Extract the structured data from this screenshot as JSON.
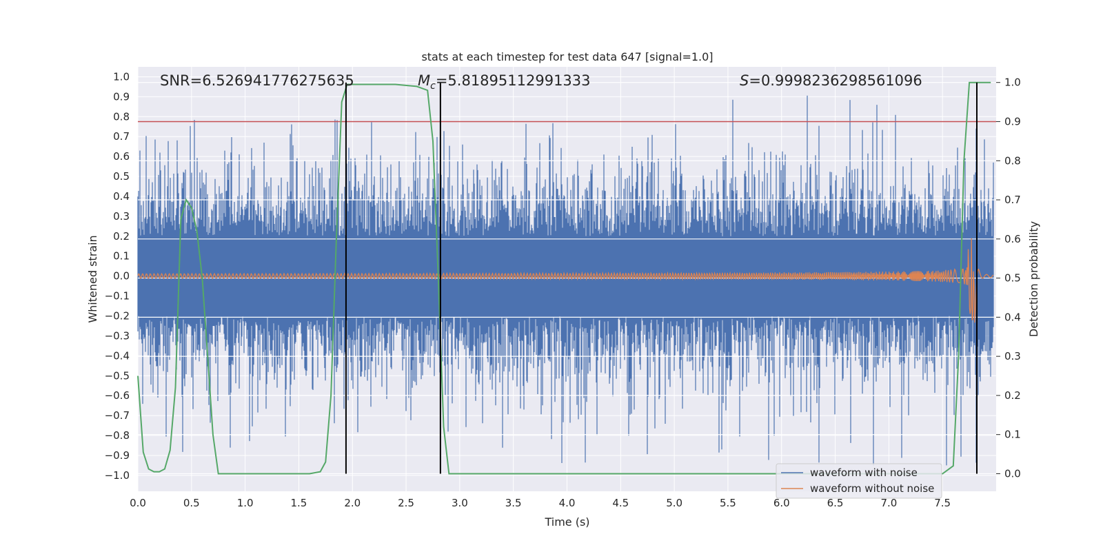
{
  "chart_data": {
    "type": "line",
    "title": "stats at each timestep for test data 647 [signal=1.0]",
    "xlabel": "Time (s)",
    "ylabel_left": "Whitened strain",
    "ylabel_right": "Detection probability",
    "xlim": [
      0.0,
      8.0
    ],
    "ylim_left": [
      -1.08,
      1.05
    ],
    "ylim_right": [
      -0.045,
      1.04
    ],
    "grid": true,
    "xticks": [
      "0.0",
      "0.5",
      "1.0",
      "1.5",
      "2.0",
      "2.5",
      "3.0",
      "3.5",
      "4.0",
      "4.5",
      "5.0",
      "5.5",
      "6.0",
      "6.5",
      "7.0",
      "7.5"
    ],
    "yticks_left": [
      "1.0",
      "0.9",
      "0.8",
      "0.7",
      "0.6",
      "0.5",
      "0.4",
      "0.3",
      "0.2",
      "0.1",
      "0.0",
      "−0.1",
      "−0.2",
      "−0.3",
      "−0.4",
      "−0.5",
      "−0.6",
      "−0.7",
      "−0.8",
      "−0.9",
      "−1.0"
    ],
    "yticks_right": [
      "1.0",
      "0.9",
      "0.8",
      "0.7",
      "0.6",
      "0.5",
      "0.4",
      "0.3",
      "0.2",
      "0.1",
      "0.0"
    ],
    "annotations": {
      "snr": "SNR=6.526941776275635",
      "mc_symbol": "M",
      "mc_sub": "c",
      "mc_value": "=5.81895112991333",
      "s_symbol": "S",
      "s_value": "=0.9998236298561096"
    },
    "threshold": {
      "axis": "right",
      "value": 0.9,
      "color": "#c44e52"
    },
    "vertical_lines": [
      1.94,
      2.82,
      7.82
    ],
    "legend": {
      "position": "lower-right",
      "entries": [
        {
          "label": "waveform with noise",
          "color": "#4c72b0"
        },
        {
          "label": "waveform without noise",
          "color": "#dd8452"
        }
      ]
    },
    "series": [
      {
        "name": "waveform with noise",
        "axis": "left",
        "color": "#4c72b0",
        "kind": "noise",
        "sample_rate_hz": 2048,
        "approx_range": [
          -0.95,
          0.98
        ]
      },
      {
        "name": "waveform without noise",
        "axis": "left",
        "color": "#dd8452",
        "kind": "chirp",
        "amplitude_start": 0.012,
        "amplitude_peak": 0.24,
        "merger_time": 7.8
      },
      {
        "name": "detection probability",
        "axis": "right",
        "color": "#55a868",
        "x": [
          0.0,
          0.05,
          0.1,
          0.15,
          0.2,
          0.25,
          0.3,
          0.35,
          0.4,
          0.45,
          0.5,
          0.55,
          0.6,
          0.65,
          0.7,
          0.75,
          0.8,
          0.85,
          0.9,
          1.0,
          1.2,
          1.4,
          1.6,
          1.7,
          1.75,
          1.8,
          1.85,
          1.9,
          1.95,
          2.0,
          2.05,
          2.1,
          2.2,
          2.4,
          2.6,
          2.7,
          2.75,
          2.8,
          2.85,
          2.9,
          2.95,
          3.0,
          3.1,
          3.5,
          4.0,
          5.0,
          6.0,
          7.0,
          7.5,
          7.6,
          7.65,
          7.7,
          7.75,
          7.8,
          7.85,
          7.9,
          7.95
        ],
        "values": [
          0.25,
          0.055,
          0.012,
          0.005,
          0.005,
          0.012,
          0.06,
          0.22,
          0.65,
          0.7,
          0.68,
          0.62,
          0.5,
          0.3,
          0.1,
          0.0,
          0.0,
          0.0,
          0.0,
          0.0,
          0.0,
          0.0,
          0.0,
          0.005,
          0.03,
          0.2,
          0.6,
          0.95,
          0.995,
          0.995,
          0.995,
          0.995,
          0.995,
          0.995,
          0.99,
          0.98,
          0.85,
          0.5,
          0.12,
          0.0,
          0.0,
          0.0,
          0.0,
          0.0,
          0.0,
          0.0,
          0.0,
          0.0,
          0.0,
          0.02,
          0.3,
          0.8,
          1.0,
          1.0,
          1.0,
          1.0,
          1.0
        ]
      }
    ]
  }
}
